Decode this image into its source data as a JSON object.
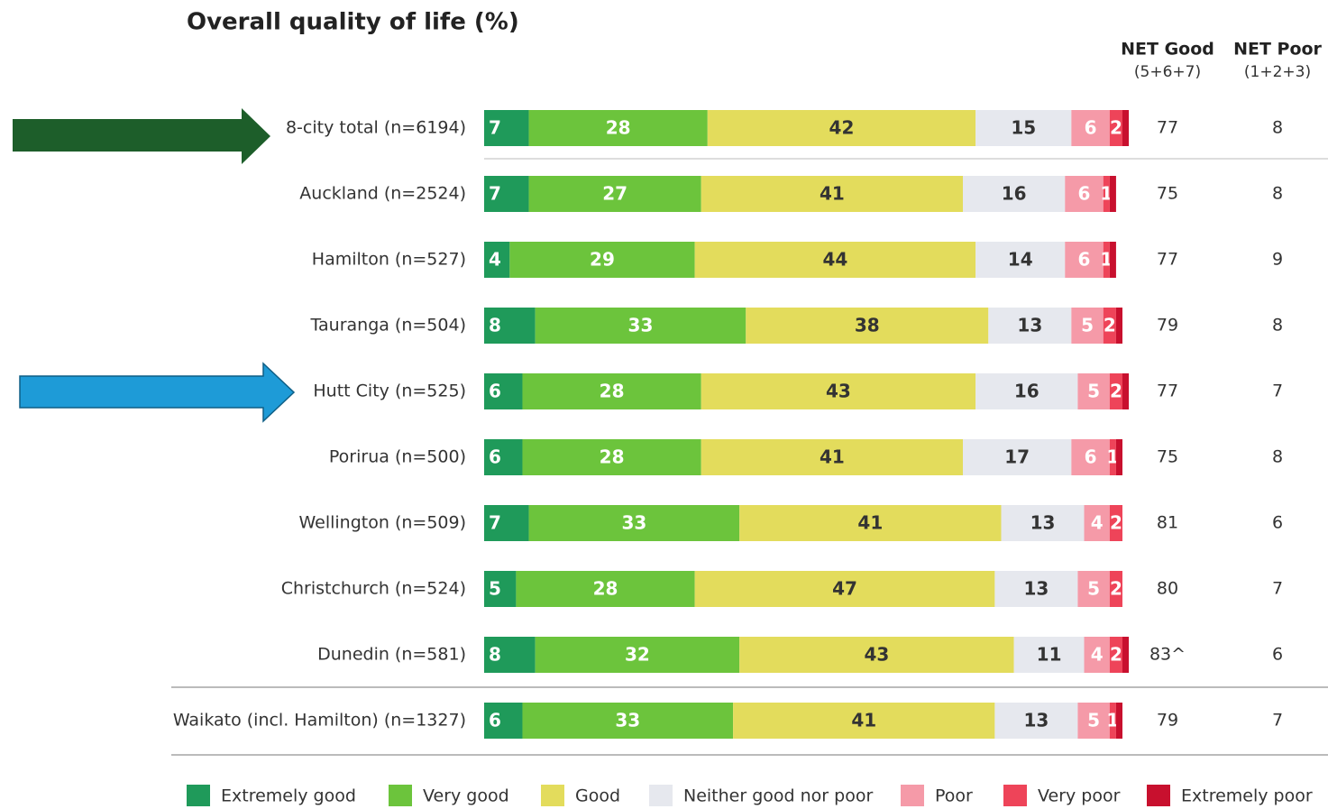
{
  "chart_data": {
    "type": "stacked-bar-horizontal",
    "title": "Overall quality of life (%)",
    "categories": [
      "8-city total (n=6194)",
      "Auckland (n=2524)",
      "Hamilton (n=527)",
      "Tauranga (n=504)",
      "Hutt City (n=525)",
      "Porirua (n=500)",
      "Wellington (n=509)",
      "Christchurch (n=524)",
      "Dunedin (n=581)",
      "Waikato (incl. Hamilton) (n=1327)"
    ],
    "xlim": [
      0,
      100
    ],
    "series": [
      {
        "name": "Extremely good",
        "color": "#1f9a5a",
        "values": [
          7,
          7,
          4,
          8,
          6,
          6,
          7,
          5,
          8,
          6
        ]
      },
      {
        "name": "Very good",
        "color": "#6cc43c",
        "values": [
          28,
          27,
          29,
          33,
          28,
          28,
          33,
          28,
          32,
          33
        ]
      },
      {
        "name": "Good",
        "color": "#e3dc5c",
        "values": [
          42,
          41,
          44,
          38,
          43,
          41,
          41,
          47,
          43,
          41
        ]
      },
      {
        "name": "Neither good nor poor",
        "color": "#e6e8ee",
        "values": [
          15,
          16,
          14,
          13,
          16,
          17,
          13,
          13,
          11,
          13
        ]
      },
      {
        "name": "Poor",
        "color": "#f59aa8",
        "values": [
          6,
          6,
          6,
          5,
          5,
          6,
          4,
          5,
          4,
          5
        ]
      },
      {
        "name": "Very poor",
        "color": "#ee4459",
        "values": [
          2,
          1,
          1,
          2,
          2,
          1,
          2,
          2,
          2,
          1
        ]
      },
      {
        "name": "Extremely poor",
        "color": "#c8102e",
        "values": [
          1,
          1,
          1,
          1,
          1,
          1,
          0,
          0,
          1,
          1
        ]
      }
    ],
    "net_good": {
      "title": "NET Good",
      "subtitle": "(5+6+7)",
      "values": [
        77,
        75,
        77,
        79,
        77,
        75,
        81,
        80,
        83,
        79
      ],
      "value_labels": [
        "77",
        "75",
        "77",
        "79",
        "77",
        "75",
        "81",
        "80",
        "83^",
        "79"
      ]
    },
    "net_poor": {
      "title": "NET Poor",
      "subtitle": "(1+2+3)",
      "values": [
        8,
        8,
        9,
        8,
        7,
        8,
        6,
        7,
        6,
        7
      ]
    }
  }
}
